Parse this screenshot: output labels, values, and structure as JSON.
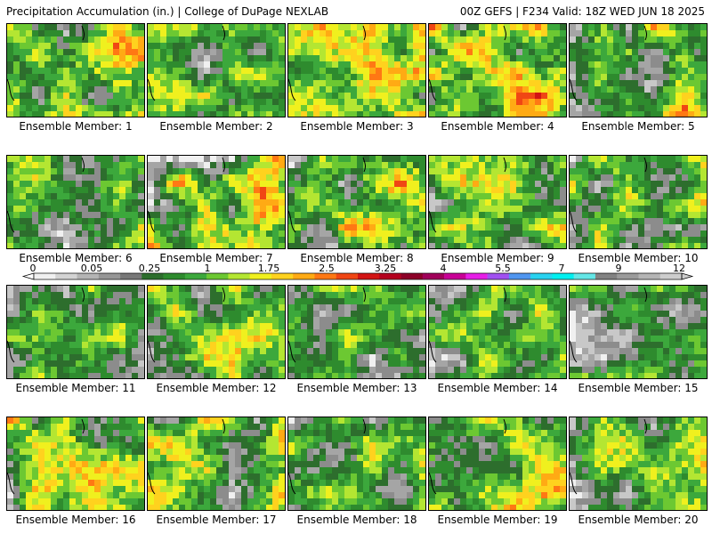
{
  "header": {
    "left": "Precipitation Accumulation (in.) | College of DuPage NEXLAB",
    "right": "00Z GEFS | F234 Valid: 18Z WED JUN 18 2025"
  },
  "panels": [
    {
      "label": "Ensemble Member: 1",
      "seed": 11,
      "wet": 0.62
    },
    {
      "label": "Ensemble Member: 2",
      "seed": 23,
      "wet": 0.5
    },
    {
      "label": "Ensemble Member: 3",
      "seed": 37,
      "wet": 0.58
    },
    {
      "label": "Ensemble Member: 4",
      "seed": 41,
      "wet": 0.66
    },
    {
      "label": "Ensemble Member: 5",
      "seed": 53,
      "wet": 0.56
    },
    {
      "label": "Ensemble Member: 6",
      "seed": 67,
      "wet": 0.55
    },
    {
      "label": "Ensemble Member: 7",
      "seed": 71,
      "wet": 0.63
    },
    {
      "label": "Ensemble Member: 8",
      "seed": 83,
      "wet": 0.6
    },
    {
      "label": "Ensemble Member: 9",
      "seed": 97,
      "wet": 0.57
    },
    {
      "label": "Ensemble Member: 10",
      "seed": 101,
      "wet": 0.55
    },
    {
      "label": "Ensemble Member: 11",
      "seed": 113,
      "wet": 0.5
    },
    {
      "label": "Ensemble Member: 12",
      "seed": 127,
      "wet": 0.52
    },
    {
      "label": "Ensemble Member: 13",
      "seed": 131,
      "wet": 0.46
    },
    {
      "label": "Ensemble Member: 14",
      "seed": 149,
      "wet": 0.48
    },
    {
      "label": "Ensemble Member: 15",
      "seed": 151,
      "wet": 0.47
    },
    {
      "label": "Ensemble Member: 16",
      "seed": 163,
      "wet": 0.6
    },
    {
      "label": "Ensemble Member: 17",
      "seed": 173,
      "wet": 0.57
    },
    {
      "label": "Ensemble Member: 18",
      "seed": 181,
      "wet": 0.55
    },
    {
      "label": "Ensemble Member: 19",
      "seed": 191,
      "wet": 0.6
    },
    {
      "label": "Ensemble Member: 20",
      "seed": 199,
      "wet": 0.5
    }
  ],
  "legend": {
    "labels": [
      "0",
      "0.05",
      "0.25",
      "1",
      "1.75",
      "2.5",
      "3.25",
      "4",
      "5.5",
      "7",
      "9",
      "12"
    ],
    "colors": [
      "#f0f0f0",
      "#d3d3d3",
      "#b4b4b4",
      "#969696",
      "#787878",
      "#2d6e2d",
      "#2e8b2e",
      "#3ca83c",
      "#6cc832",
      "#b4e632",
      "#f0f01e",
      "#ffd21e",
      "#ffaa14",
      "#ff7814",
      "#f04614",
      "#d21414",
      "#b4001e",
      "#8c0028",
      "#a0005a",
      "#c80096",
      "#e61ee6",
      "#a050f0",
      "#5096f0",
      "#28d2f0",
      "#00f0f0",
      "#64e6e6",
      "#828282",
      "#9b9b9b",
      "#b4b4b4",
      "#cdcdcd"
    ]
  }
}
